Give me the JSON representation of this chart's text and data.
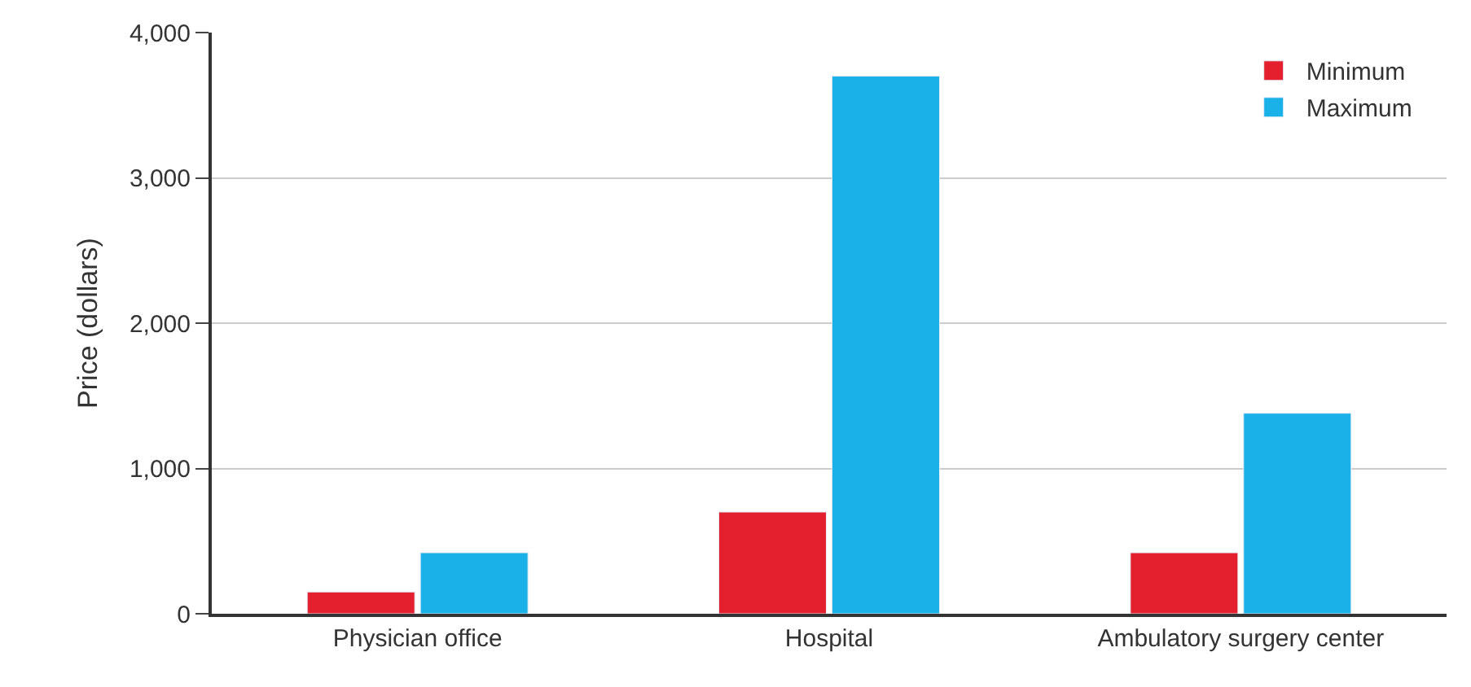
{
  "chart_data": {
    "type": "bar",
    "ylabel": "Price (dollars)",
    "categories": [
      "Physician office",
      "Hospital",
      "Ambulatory surgery center"
    ],
    "series": [
      {
        "name": "Minimum",
        "color": "#e4202e",
        "values": [
          150,
          700,
          420
        ]
      },
      {
        "name": "Maximum",
        "color": "#1ab0e8",
        "values": [
          420,
          3700,
          1380
        ]
      }
    ],
    "ylim": [
      0,
      4000
    ],
    "yticks": [
      0,
      {
        "value": 1000,
        "label": "1,000"
      },
      {
        "value": 2000,
        "label": "2,000"
      },
      {
        "value": 3000,
        "label": "3,000"
      },
      {
        "value": 4000,
        "label": "4,000"
      }
    ],
    "grid": "y",
    "legend": "top right"
  }
}
